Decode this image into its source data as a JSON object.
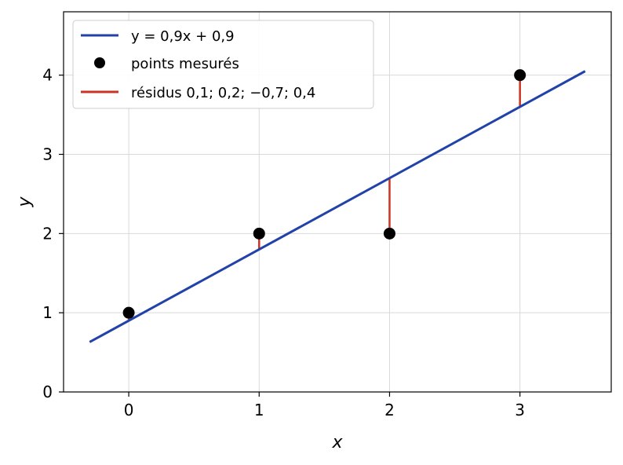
{
  "chart_data": {
    "type": "line",
    "xlabel": "x",
    "ylabel": "y",
    "xlim": [
      -0.5,
      3.7
    ],
    "ylim": [
      0,
      4.8
    ],
    "xticks": [
      0,
      1,
      2,
      3
    ],
    "yticks": [
      0,
      1,
      2,
      3,
      4
    ],
    "xtick_labels": [
      "0",
      "1",
      "2",
      "3"
    ],
    "ytick_labels": [
      "0",
      "1",
      "2",
      "3",
      "4"
    ],
    "grid": true,
    "legend_position": "top-left",
    "fit_line": {
      "label": "y = 0,9x + 0,9",
      "slope": 0.9,
      "intercept": 0.9,
      "x_range": [
        -0.3,
        3.5
      ],
      "color": "#2142a8"
    },
    "points": {
      "label": "points mesurés",
      "x": [
        0,
        1,
        2,
        3
      ],
      "y": [
        1,
        2,
        2,
        4
      ],
      "color": "#000000"
    },
    "residuals": {
      "label": "résidus 0,1; 0,2; −0,7; 0,4",
      "values": [
        0.1,
        0.2,
        -0.7,
        0.4
      ],
      "color": "#cc3322"
    }
  }
}
